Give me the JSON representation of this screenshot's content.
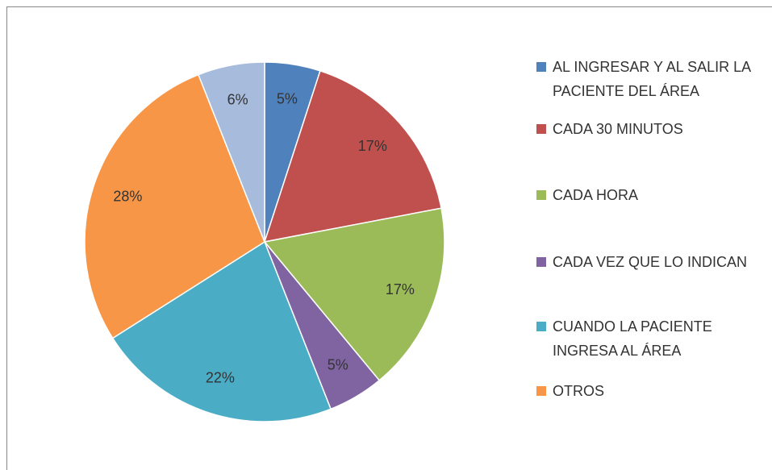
{
  "chart_data": {
    "type": "pie",
    "categories": [
      "AL INGRESAR Y AL SALIR LA PACIENTE DEL ÁREA",
      "CADA 30 MINUTOS",
      "CADA HORA",
      "CADA VEZ QUE LO INDICAN",
      "CUANDO LA PACIENTE INGRESA AL ÁREA",
      "OTROS",
      null
    ],
    "values": [
      5,
      17,
      17,
      5,
      22,
      28,
      6
    ],
    "value_labels": [
      "5%",
      "17%",
      "17%",
      "5%",
      "22%",
      "28%",
      "6%"
    ],
    "colors": [
      "#4f81bd",
      "#c0504d",
      "#9bbb59",
      "#8064a2",
      "#4bacc6",
      "#f79646",
      "#a7bbdd"
    ]
  }
}
